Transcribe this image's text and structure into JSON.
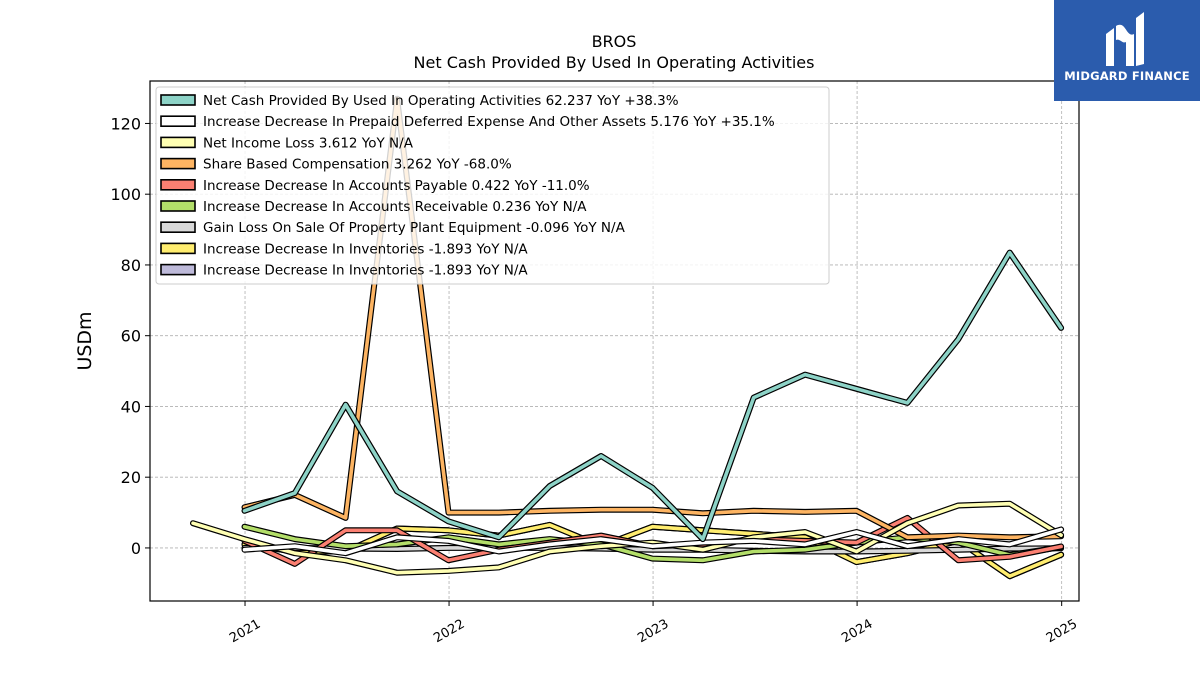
{
  "brand": {
    "name": "MIDGARD FINANCE",
    "bg": "#2b5cad"
  },
  "chart_data": {
    "type": "line",
    "title": "BROS",
    "subtitle": "Net Cash Provided By Used In Operating Activities",
    "ylabel": "USDm",
    "xlabel": "",
    "xlim": [
      "2020-07-15",
      "2025-02-01"
    ],
    "ylim": [
      -15,
      132
    ],
    "yticks": [
      0,
      20,
      40,
      60,
      80,
      100,
      120
    ],
    "xticks": [
      "2021",
      "2022",
      "2023",
      "2024",
      "2025"
    ],
    "grid": true,
    "legend_position": "top-left",
    "series": [
      {
        "name": "Net Cash Provided By Used In Operating Activities",
        "legend": "Net Cash Provided By Used In Operating Activities  62.237 YoY +38.3%",
        "color": "#8dd3c7",
        "points": [
          [
            "2020-12-31",
            10.5
          ],
          [
            "2021-03-31",
            15.5
          ],
          [
            "2021-06-30",
            40.5
          ],
          [
            "2021-09-30",
            16.0
          ],
          [
            "2021-12-31",
            7.5
          ],
          [
            "2022-03-31",
            3.0
          ],
          [
            "2022-06-30",
            17.5
          ],
          [
            "2022-09-30",
            26.0
          ],
          [
            "2022-12-31",
            17.0
          ],
          [
            "2023-03-31",
            2.5
          ],
          [
            "2023-06-30",
            42.5
          ],
          [
            "2023-09-30",
            49.0
          ],
          [
            "2023-12-31",
            45.0
          ],
          [
            "2024-03-31",
            41.0
          ],
          [
            "2024-06-30",
            59.0
          ],
          [
            "2024-09-30",
            83.5
          ],
          [
            "2024-12-31",
            62.2
          ]
        ]
      },
      {
        "name": "Increase Decrease In Prepaid Deferred Expense And Other Assets",
        "legend": "Increase Decrease In Prepaid Deferred Expense And Other Assets  5.176 YoY +35.1%",
        "color": "#ffffff",
        "points": [
          [
            "2020-12-31",
            -0.5
          ],
          [
            "2021-03-31",
            0.5
          ],
          [
            "2021-06-30",
            -1.5
          ],
          [
            "2021-09-30",
            3.0
          ],
          [
            "2021-12-31",
            2.0
          ],
          [
            "2022-03-31",
            -1.0
          ],
          [
            "2022-06-30",
            1.0
          ],
          [
            "2022-09-30",
            2.5
          ],
          [
            "2022-12-31",
            0.5
          ],
          [
            "2023-03-31",
            1.5
          ],
          [
            "2023-06-30",
            2.0
          ],
          [
            "2023-09-30",
            1.0
          ],
          [
            "2023-12-31",
            4.5
          ],
          [
            "2024-03-31",
            0.5
          ],
          [
            "2024-06-30",
            2.5
          ],
          [
            "2024-09-30",
            1.0
          ],
          [
            "2024-12-31",
            5.2
          ]
        ]
      },
      {
        "name": "Net Income Loss",
        "legend": "Net Income Loss  3.612 YoY N/A",
        "color": "#ffffb3",
        "points": [
          [
            "2020-09-30",
            7.0
          ],
          [
            "2020-12-31",
            2.5
          ],
          [
            "2021-03-31",
            -1.5
          ],
          [
            "2021-06-30",
            -3.5
          ],
          [
            "2021-09-30",
            -7.0
          ],
          [
            "2021-12-31",
            -6.5
          ],
          [
            "2022-03-31",
            -5.5
          ],
          [
            "2022-06-30",
            -1.0
          ],
          [
            "2022-09-30",
            0.5
          ],
          [
            "2022-12-31",
            1.5
          ],
          [
            "2023-03-31",
            -0.5
          ],
          [
            "2023-06-30",
            3.0
          ],
          [
            "2023-09-30",
            4.5
          ],
          [
            "2023-12-31",
            -1.0
          ],
          [
            "2024-03-31",
            7.0
          ],
          [
            "2024-06-30",
            12.0
          ],
          [
            "2024-09-30",
            12.5
          ],
          [
            "2024-12-31",
            3.6
          ]
        ]
      },
      {
        "name": "Share Based Compensation",
        "legend": "Share Based Compensation  3.262 YoY -68.0%",
        "color": "#fdb462",
        "points": [
          [
            "2020-12-31",
            11.5
          ],
          [
            "2021-03-31",
            15.0
          ],
          [
            "2021-06-30",
            8.5
          ],
          [
            "2021-09-30",
            127.0
          ],
          [
            "2021-12-31",
            10.0
          ],
          [
            "2022-03-31",
            10.0
          ],
          [
            "2022-06-30",
            10.5
          ],
          [
            "2022-09-30",
            10.8
          ],
          [
            "2022-12-31",
            10.8
          ],
          [
            "2023-03-31",
            9.8
          ],
          [
            "2023-06-30",
            10.5
          ],
          [
            "2023-09-30",
            10.2
          ],
          [
            "2023-12-31",
            10.5
          ],
          [
            "2024-03-31",
            3.0
          ],
          [
            "2024-06-30",
            3.5
          ],
          [
            "2024-09-30",
            3.0
          ],
          [
            "2024-12-31",
            3.3
          ]
        ]
      },
      {
        "name": "Increase Decrease In Accounts Payable",
        "legend": "Increase Decrease In Accounts Payable  0.422 YoY -11.0%",
        "color": "#fb8072",
        "points": [
          [
            "2020-12-31",
            2.0
          ],
          [
            "2021-03-31",
            -4.5
          ],
          [
            "2021-06-30",
            5.0
          ],
          [
            "2021-09-30",
            5.0
          ],
          [
            "2021-12-31",
            -3.5
          ],
          [
            "2022-03-31",
            -0.5
          ],
          [
            "2022-06-30",
            1.5
          ],
          [
            "2022-09-30",
            3.5
          ],
          [
            "2022-12-31",
            0.5
          ],
          [
            "2023-03-31",
            1.0
          ],
          [
            "2023-06-30",
            2.5
          ],
          [
            "2023-09-30",
            2.0
          ],
          [
            "2023-12-31",
            1.5
          ],
          [
            "2024-03-31",
            8.5
          ],
          [
            "2024-06-30",
            -3.5
          ],
          [
            "2024-09-30",
            -2.5
          ],
          [
            "2024-12-31",
            0.4
          ]
        ]
      },
      {
        "name": "Increase Decrease In Accounts Receivable",
        "legend": "Increase Decrease In Accounts Receivable  0.236 YoY N/A",
        "color": "#b3de69",
        "points": [
          [
            "2020-12-31",
            6.0
          ],
          [
            "2021-03-31",
            2.5
          ],
          [
            "2021-06-30",
            0.5
          ],
          [
            "2021-09-30",
            1.0
          ],
          [
            "2021-12-31",
            3.0
          ],
          [
            "2022-03-31",
            1.0
          ],
          [
            "2022-06-30",
            2.5
          ],
          [
            "2022-09-30",
            1.0
          ],
          [
            "2022-12-31",
            -3.0
          ],
          [
            "2023-03-31",
            -3.5
          ],
          [
            "2023-06-30",
            -1.0
          ],
          [
            "2023-09-30",
            -0.5
          ],
          [
            "2023-12-31",
            1.5
          ],
          [
            "2024-03-31",
            3.0
          ],
          [
            "2024-06-30",
            1.5
          ],
          [
            "2024-09-30",
            -2.0
          ],
          [
            "2024-12-31",
            0.2
          ]
        ]
      },
      {
        "name": "Gain Loss On Sale Of Property Plant Equipment",
        "legend": "Gain Loss On Sale Of Property Plant Equipment  -0.096 YoY N/A",
        "color": "#d9d9d9",
        "points": [
          [
            "2020-12-31",
            0.0
          ],
          [
            "2021-03-31",
            0.0
          ],
          [
            "2021-06-30",
            -0.2
          ],
          [
            "2021-09-30",
            -0.3
          ],
          [
            "2021-12-31",
            0.0
          ],
          [
            "2022-03-31",
            0.0
          ],
          [
            "2022-06-30",
            0.0
          ],
          [
            "2022-09-30",
            -0.2
          ],
          [
            "2022-12-31",
            -0.5
          ],
          [
            "2023-03-31",
            -0.5
          ],
          [
            "2023-06-30",
            -0.8
          ],
          [
            "2023-09-30",
            -1.0
          ],
          [
            "2023-12-31",
            -1.0
          ],
          [
            "2024-03-31",
            -0.8
          ],
          [
            "2024-06-30",
            -0.5
          ],
          [
            "2024-09-30",
            -0.2
          ],
          [
            "2024-12-31",
            -0.1
          ]
        ]
      },
      {
        "name": "Increase Decrease In Inventories",
        "legend": "Increase Decrease In Inventories  -1.893 YoY N/A",
        "color": "#ffed6f",
        "points": [
          [
            "2020-12-31",
            1.0
          ],
          [
            "2021-03-31",
            -1.0
          ],
          [
            "2021-06-30",
            -1.0
          ],
          [
            "2021-09-30",
            5.5
          ],
          [
            "2021-12-31",
            5.0
          ],
          [
            "2022-03-31",
            3.5
          ],
          [
            "2022-06-30",
            6.5
          ],
          [
            "2022-09-30",
            0.5
          ],
          [
            "2022-12-31",
            6.0
          ],
          [
            "2023-03-31",
            5.0
          ],
          [
            "2023-06-30",
            4.0
          ],
          [
            "2023-09-30",
            3.0
          ],
          [
            "2023-12-31",
            -4.0
          ],
          [
            "2024-03-31",
            -1.5
          ],
          [
            "2024-06-30",
            2.0
          ],
          [
            "2024-09-30",
            -8.0
          ],
          [
            "2024-12-31",
            -1.9
          ]
        ]
      },
      {
        "name": "Increase Decrease In Inventories",
        "legend": "Increase Decrease In Inventories  -1.893 YoY N/A",
        "color": "#bebada",
        "points": [
          [
            "2020-12-31",
            1.0
          ],
          [
            "2021-03-31",
            -1.0
          ],
          [
            "2021-06-30",
            -1.0
          ],
          [
            "2021-09-30",
            5.5
          ],
          [
            "2021-12-31",
            5.0
          ],
          [
            "2022-03-31",
            3.5
          ],
          [
            "2022-06-30",
            6.5
          ],
          [
            "2022-09-30",
            0.5
          ],
          [
            "2022-12-31",
            6.0
          ],
          [
            "2023-03-31",
            5.0
          ],
          [
            "2023-06-30",
            4.0
          ],
          [
            "2023-09-30",
            3.0
          ],
          [
            "2023-12-31",
            -4.0
          ],
          [
            "2024-03-31",
            -1.5
          ],
          [
            "2024-06-30",
            2.0
          ],
          [
            "2024-09-30",
            -8.0
          ],
          [
            "2024-12-31",
            -1.9
          ]
        ]
      }
    ]
  }
}
